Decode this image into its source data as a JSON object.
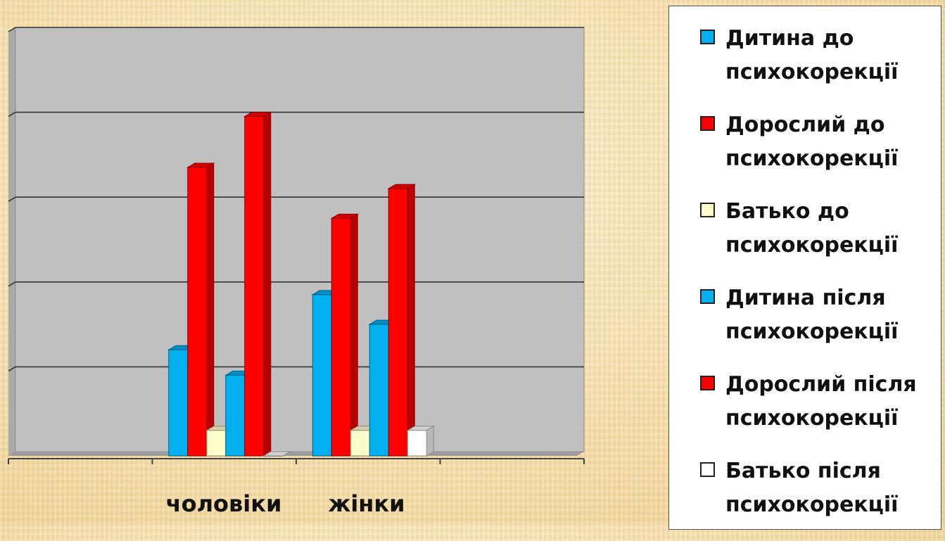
{
  "chart_data": {
    "type": "bar",
    "categories": [
      "чоловіки",
      "жінки"
    ],
    "ylim": [
      0,
      5
    ],
    "grid": true,
    "legend_placement": "right",
    "series": [
      {
        "name": "Дитина до психокорекції",
        "color": "#00b0f0",
        "values": [
          1.25,
          1.9
        ]
      },
      {
        "name": "Дорослий до психокорекції",
        "color": "#ff0000",
        "values": [
          3.4,
          2.8
        ]
      },
      {
        "name": "Батько до психокорекції",
        "color": "#ffffcc",
        "values": [
          0.3,
          0.3
        ]
      },
      {
        "name": "Дитина після психокорекції",
        "color": "#00b0f0",
        "values": [
          0.95,
          1.55
        ]
      },
      {
        "name": "Дорослий після психокорекції",
        "color": "#ff0000",
        "values": [
          4.0,
          3.15
        ]
      },
      {
        "name": "Батько після психокорекції",
        "color": "#ffffff",
        "values": [
          0.0,
          0.3
        ]
      }
    ]
  }
}
